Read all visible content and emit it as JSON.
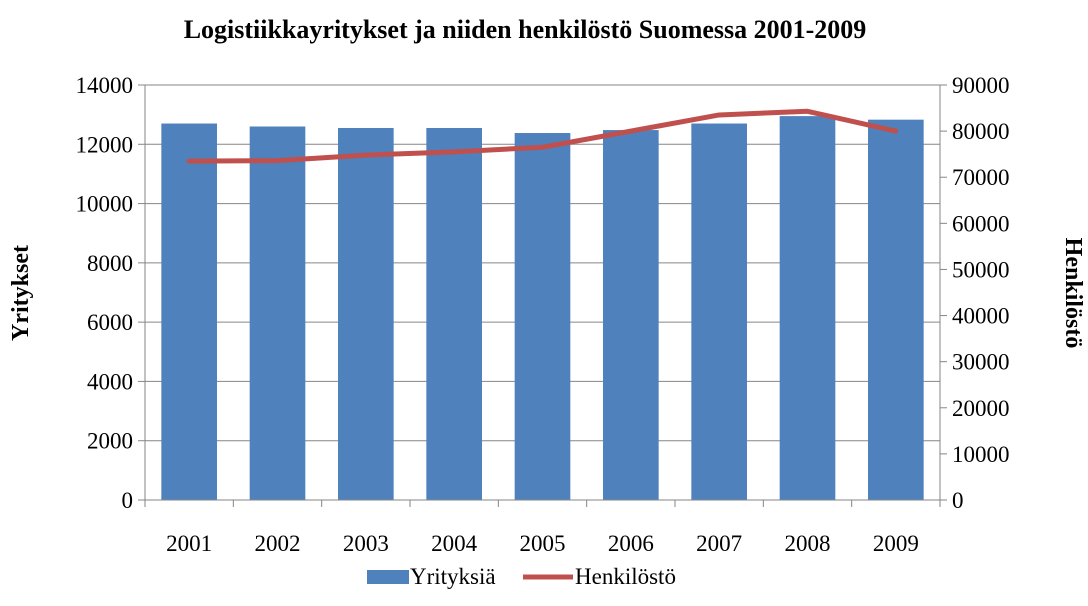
{
  "chart_data": {
    "type": "bar",
    "title": "Logistiikkayritykset ja niiden henkilöstö  Suomessa 2001-2009",
    "categories": [
      "2001",
      "2002",
      "2003",
      "2004",
      "2005",
      "2006",
      "2007",
      "2008",
      "2009"
    ],
    "ylabel": "Yritykset",
    "y2label": "Henkilöstö",
    "ylim": [
      0,
      14000
    ],
    "y2lim": [
      0,
      90000
    ],
    "yticks": [
      "0",
      "2000",
      "4000",
      "6000",
      "8000",
      "10000",
      "12000",
      "14000"
    ],
    "y2ticks": [
      "0",
      "10000",
      "20000",
      "30000",
      "40000",
      "50000",
      "60000",
      "70000",
      "80000",
      "90000"
    ],
    "grid": true,
    "legend_position": "bottom",
    "series": [
      {
        "name": "Yrityksiä",
        "type": "bar",
        "axis": "left",
        "color": "#4f81bd",
        "values": [
          12700,
          12600,
          12550,
          12550,
          12380,
          12480,
          12700,
          12950,
          12830
        ]
      },
      {
        "name": "Henkilöstö",
        "type": "line",
        "axis": "right",
        "color": "#c0504d",
        "values": [
          73500,
          73600,
          74800,
          75500,
          76500,
          80000,
          83500,
          84300,
          80000
        ]
      }
    ]
  }
}
